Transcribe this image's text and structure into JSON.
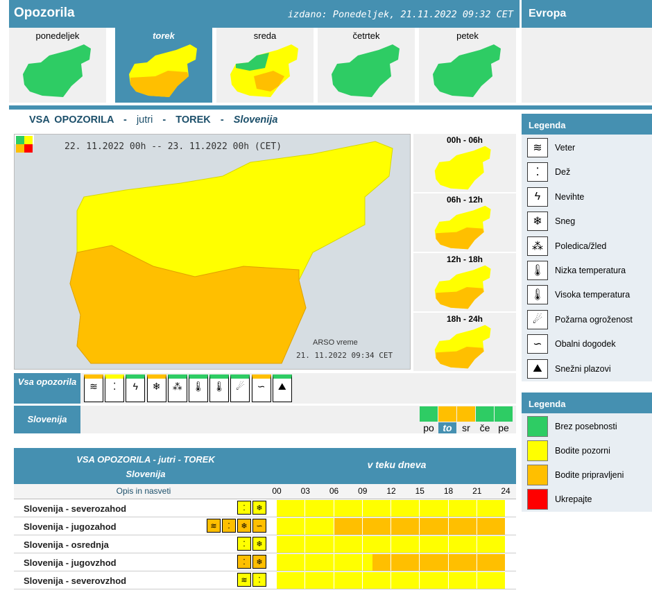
{
  "header": {
    "title": "Opozorila",
    "issued": "izdano: Ponedeljek, 21.11.2022 09:32 CET",
    "europe": "Evropa"
  },
  "days": [
    {
      "label": "ponedeljek",
      "selected": false
    },
    {
      "label": "torek",
      "selected": true
    },
    {
      "label": "sreda",
      "selected": false
    },
    {
      "label": "četrtek",
      "selected": false
    },
    {
      "label": "petek",
      "selected": false
    }
  ],
  "section_title": {
    "a": "VSA OPOZORILA",
    "b": "jutri",
    "c": "TOREK",
    "d": "Slovenija",
    "dash": "-"
  },
  "map": {
    "period": "22. 11.2022  00h  --  23. 11.2022  00h     (CET)",
    "credit1": "ARSO vreme",
    "credit2": "21. 11.2022  09:34 CET"
  },
  "periods": [
    "00h - 06h",
    "06h - 12h",
    "12h - 18h",
    "18h - 24h"
  ],
  "legend1": {
    "title": "Legenda",
    "items": [
      {
        "icon": "wind-icon",
        "glyph": "≋",
        "label": "Veter"
      },
      {
        "icon": "rain-icon",
        "glyph": "⁚",
        "label": "Dež"
      },
      {
        "icon": "thunderstorm-icon",
        "glyph": "ϟ",
        "label": "Nevihte"
      },
      {
        "icon": "snow-icon",
        "glyph": "❄",
        "label": "Sneg"
      },
      {
        "icon": "ice-icon",
        "glyph": "⁂",
        "label": "Poledica/žled"
      },
      {
        "icon": "low-temp-icon",
        "glyph": "🌡",
        "label": "Nizka temperatura"
      },
      {
        "icon": "high-temp-icon",
        "glyph": "🌡",
        "label": "Visoka temperatura"
      },
      {
        "icon": "fire-icon",
        "glyph": "☄",
        "label": "Požarna ogroženost"
      },
      {
        "icon": "coastal-icon",
        "glyph": "∽",
        "label": "Obalni dogodek"
      },
      {
        "icon": "avalanche-icon",
        "glyph": "⛰",
        "label": "Snežni plazovi"
      }
    ]
  },
  "legend2": {
    "title": "Legenda",
    "items": [
      {
        "label": "Brez posebnosti",
        "color": "#2ecc64"
      },
      {
        "label": "Bodite pozorni",
        "color": "#ffff00"
      },
      {
        "label": "Bodite pripravljeni",
        "color": "#ffbf00"
      },
      {
        "label": "Ukrepajte",
        "color": "#ff0000"
      }
    ]
  },
  "type_bar": {
    "label": "Vsa opozorila"
  },
  "slovenia_bar": {
    "label": "Slovenija",
    "days": [
      {
        "label": "po",
        "color": "#2ecc64"
      },
      {
        "label": "to",
        "color": "#ffbf00"
      },
      {
        "label": "sr",
        "color": "#ffbf00"
      },
      {
        "label": "če",
        "color": "#2ecc64"
      },
      {
        "label": "pe",
        "color": "#2ecc64"
      }
    ]
  },
  "table": {
    "title1": "VSA OPOZORILA - jutri - TOREK",
    "title2": "Slovenija",
    "right_title": "v teku dneva",
    "opis": "Opis in nasveti",
    "hours": [
      "00",
      "03",
      "06",
      "09",
      "12",
      "15",
      "18",
      "21",
      "24"
    ],
    "rows": [
      {
        "name": "Slovenija - severozahod",
        "orange_from_h": null
      },
      {
        "name": "Slovenija - jugozahod",
        "orange_from_h": 6
      },
      {
        "name": "Slovenija - osrednja",
        "orange_from_h": null
      },
      {
        "name": "Slovenija - jugovzhod",
        "orange_from_h": 10
      },
      {
        "name": "Slovenija - severovzhod",
        "orange_from_h": null
      }
    ]
  }
}
